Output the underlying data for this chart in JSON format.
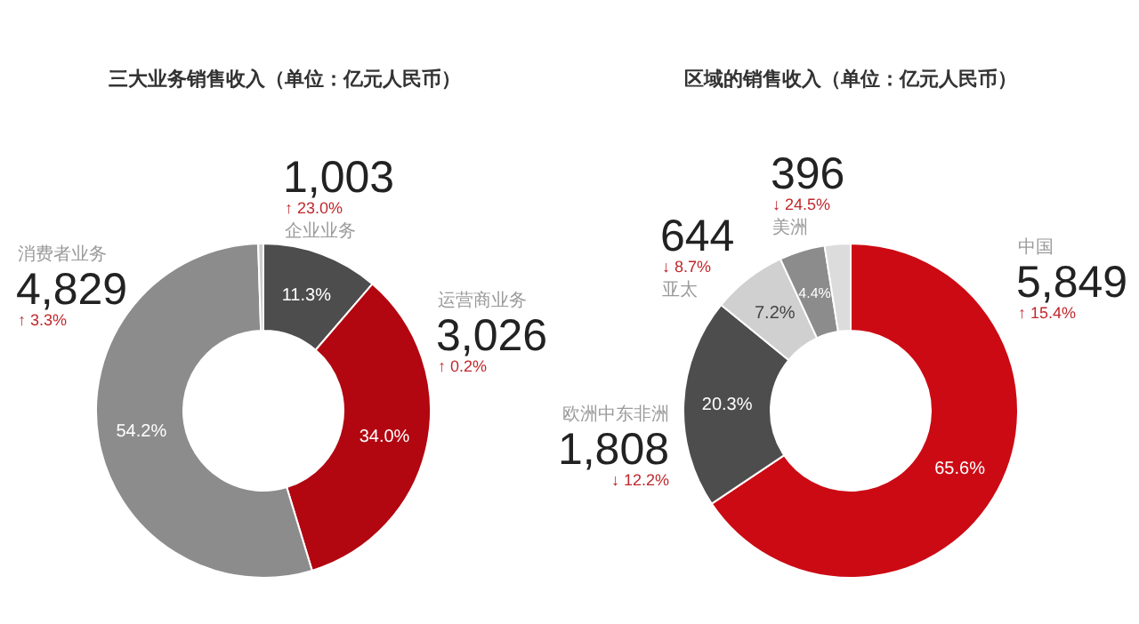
{
  "chart_data": [
    {
      "type": "donut",
      "title": "三大业务销售收入（单位：亿元人民币）",
      "categories": [
        "企业业务",
        "运营商业务",
        "消费者业务",
        null
      ],
      "values": [
        11.3,
        34.0,
        54.2,
        0.5
      ],
      "colors": [
        "#4d4d4d",
        "#b20610",
        "#8c8c8c",
        "#cccccc"
      ],
      "value_labels": [
        "11.3%",
        "34.0%",
        "54.2%",
        null
      ],
      "annotations": [
        "1,003",
        "↑ 23.0%",
        "3,026",
        "↑ 0.2%",
        "4,829",
        "↑ 3.3%"
      ]
    },
    {
      "type": "donut",
      "title": "区域的销售收入（单位：亿元人民币）",
      "categories": [
        "中国",
        "欧洲中东非洲",
        "亚太",
        "美洲",
        null
      ],
      "values": [
        65.6,
        20.3,
        7.2,
        4.4,
        2.5
      ],
      "colors": [
        "#cc0a14",
        "#4d4d4d",
        "#d0d0d0",
        "#8c8c8c",
        "#dcdcdc"
      ],
      "value_labels": [
        "65.6%",
        "20.3%",
        "7.2%",
        "4.4%",
        null
      ],
      "annotations": [
        "5,849",
        "↑ 15.4%",
        "1,808",
        "↓ 12.2%",
        "644",
        "↓ 8.7%",
        "396",
        "↓ 24.5%"
      ]
    }
  ]
}
